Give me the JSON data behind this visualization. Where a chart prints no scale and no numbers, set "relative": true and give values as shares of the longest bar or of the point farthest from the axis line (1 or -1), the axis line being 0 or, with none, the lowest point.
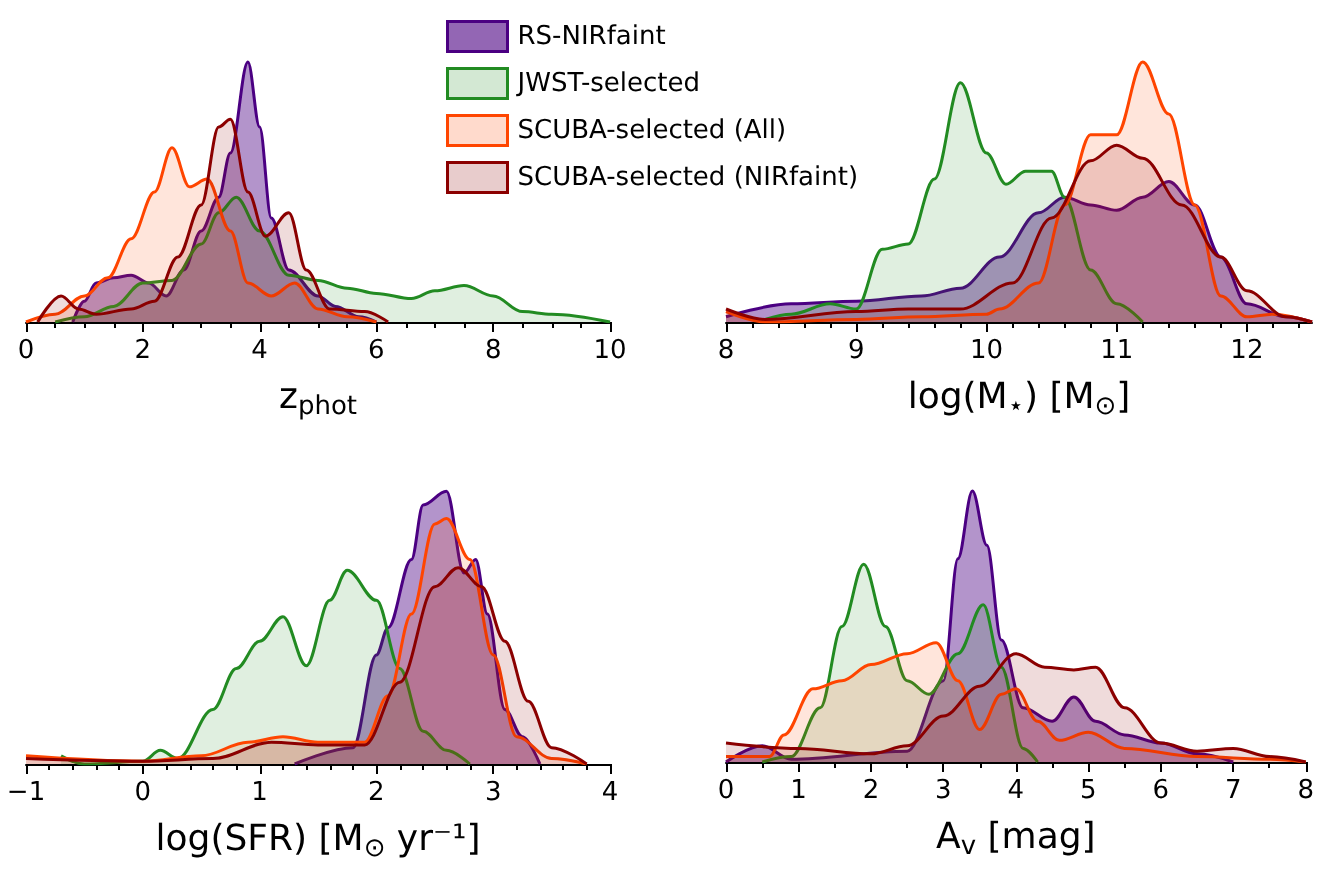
{
  "chart_data": [
    {
      "type": "area",
      "relative": true,
      "xlabel": "z$_{phot}$",
      "xlim": [
        0,
        10
      ],
      "xticks": [
        0,
        2,
        4,
        6,
        8,
        10
      ],
      "legend": "top right",
      "grid": false,
      "marker": "none",
      "series": [
        {
          "name": "RS-NIRfaint",
          "color": "#4b0082",
          "x": [
            0.8,
            1.0,
            1.2,
            1.5,
            1.8,
            2.1,
            2.4,
            2.7,
            3.0,
            3.3,
            3.5,
            3.8,
            4.0,
            4.2,
            4.5,
            5.0,
            5.3,
            5.7,
            6.0
          ],
          "values": [
            0,
            0.08,
            0.15,
            0.17,
            0.18,
            0.15,
            0.1,
            0.2,
            0.35,
            0.48,
            0.65,
            1.0,
            0.75,
            0.4,
            0.2,
            0.1,
            0.06,
            0.02,
            0
          ]
        },
        {
          "name": "JWST-selected",
          "color": "#228b22",
          "x": [
            0.5,
            1.0,
            1.5,
            2.0,
            2.5,
            3.0,
            3.3,
            3.6,
            4.0,
            4.5,
            5.0,
            5.5,
            6.0,
            6.6,
            7.0,
            7.5,
            8.0,
            8.5,
            9.0,
            10.0
          ],
          "values": [
            0,
            0.02,
            0.06,
            0.15,
            0.16,
            0.3,
            0.42,
            0.48,
            0.35,
            0.18,
            0.16,
            0.13,
            0.11,
            0.09,
            0.12,
            0.14,
            0.1,
            0.04,
            0.03,
            0
          ]
        },
        {
          "name": "SCUBA-selected (All)",
          "color": "#ff4500",
          "x": [
            0,
            0.5,
            1.0,
            1.4,
            1.8,
            2.2,
            2.5,
            2.8,
            3.1,
            3.5,
            3.8,
            4.2,
            4.6,
            5.0,
            5.5,
            6.0
          ],
          "values": [
            0,
            0.03,
            0.1,
            0.17,
            0.32,
            0.5,
            0.67,
            0.52,
            0.55,
            0.35,
            0.15,
            0.1,
            0.15,
            0.05,
            0.02,
            0
          ]
        },
        {
          "name": "SCUBA-selected (NIRfaint)",
          "color": "#8b0000",
          "x": [
            0.2,
            0.6,
            0.9,
            1.2,
            1.8,
            2.2,
            2.6,
            3.0,
            3.3,
            3.5,
            3.8,
            4.1,
            4.5,
            4.8,
            5.2,
            5.8,
            6.2
          ],
          "values": [
            0,
            0.1,
            0.05,
            0.03,
            0.05,
            0.08,
            0.25,
            0.45,
            0.75,
            0.78,
            0.5,
            0.33,
            0.42,
            0.2,
            0.05,
            0.04,
            0
          ]
        }
      ]
    },
    {
      "type": "area",
      "relative": true,
      "xlabel": "log(M$_{⋆}$) [M$_{⊙}$]",
      "xlim": [
        8,
        12.5
      ],
      "xticks": [
        8,
        9,
        10,
        11,
        12
      ],
      "grid": false,
      "marker": "none",
      "series": [
        {
          "color": "#4b0082",
          "x": [
            8.0,
            8.5,
            9.0,
            9.5,
            9.8,
            10.1,
            10.4,
            10.6,
            10.8,
            11.0,
            11.2,
            11.4,
            11.6,
            11.8,
            12.0,
            12.3,
            12.5
          ],
          "values": [
            0.02,
            0.07,
            0.08,
            0.1,
            0.13,
            0.25,
            0.42,
            0.48,
            0.45,
            0.43,
            0.48,
            0.54,
            0.45,
            0.25,
            0.07,
            0.02,
            0
          ]
        },
        {
          "color": "#228b22",
          "x": [
            8.3,
            8.5,
            8.8,
            9.0,
            9.2,
            9.4,
            9.6,
            9.8,
            10.0,
            10.15,
            10.3,
            10.5,
            10.6,
            10.8,
            11.0,
            11.2
          ],
          "values": [
            0.01,
            0.03,
            0.07,
            0.05,
            0.28,
            0.3,
            0.55,
            0.92,
            0.65,
            0.53,
            0.58,
            0.58,
            0.48,
            0.2,
            0.07,
            0
          ]
        },
        {
          "color": "#ff4500",
          "x": [
            8.0,
            8.3,
            9.0,
            9.5,
            10.0,
            10.1,
            10.4,
            10.6,
            10.8,
            11.0,
            11.2,
            11.4,
            11.6,
            11.8,
            12.0,
            12.2,
            12.5
          ],
          "values": [
            0.04,
            0,
            0.01,
            0.02,
            0.03,
            0.05,
            0.15,
            0.45,
            0.72,
            0.72,
            1.0,
            0.8,
            0.45,
            0.1,
            0.02,
            0.03,
            0
          ]
        },
        {
          "color": "#8b0000",
          "x": [
            8.0,
            8.3,
            9.0,
            9.4,
            9.8,
            10.2,
            10.5,
            10.8,
            11.0,
            11.2,
            11.5,
            11.8,
            12.0,
            12.3,
            12.5
          ],
          "values": [
            0.05,
            0.01,
            0.04,
            0.05,
            0.05,
            0.15,
            0.4,
            0.62,
            0.68,
            0.63,
            0.45,
            0.25,
            0.12,
            0.02,
            0
          ]
        }
      ]
    },
    {
      "type": "area",
      "relative": true,
      "xlabel": "log(SFR) [M$_{⊙}$ yr⁻¹]",
      "xlim": [
        -1,
        4
      ],
      "xticks": [
        -1,
        0,
        1,
        2,
        3,
        4
      ],
      "grid": false,
      "marker": "none",
      "series": [
        {
          "color": "#4b0082",
          "x": [
            1.3,
            1.8,
            2.0,
            2.1,
            2.3,
            2.4,
            2.6,
            2.75,
            2.85,
            2.95,
            3.1,
            3.25,
            3.4
          ],
          "values": [
            0,
            0.06,
            0.4,
            0.5,
            0.75,
            0.95,
            1.0,
            0.7,
            0.75,
            0.55,
            0.2,
            0.1,
            0
          ]
        },
        {
          "color": "#228b22",
          "x": [
            -0.7,
            -0.5,
            0,
            0.15,
            0.3,
            0.6,
            0.8,
            1.0,
            1.2,
            1.4,
            1.6,
            1.75,
            2.0,
            2.2,
            2.4,
            2.6,
            2.8
          ],
          "values": [
            0.03,
            0,
            0.01,
            0.05,
            0.02,
            0.2,
            0.35,
            0.45,
            0.54,
            0.36,
            0.6,
            0.71,
            0.6,
            0.35,
            0.12,
            0.05,
            0
          ]
        },
        {
          "color": "#ff4500",
          "x": [
            -1,
            0,
            0.5,
            0.9,
            1.2,
            1.5,
            1.9,
            2.1,
            2.3,
            2.5,
            2.6,
            2.8,
            3.0,
            3.2,
            3.5,
            3.8
          ],
          "values": [
            0.03,
            0.01,
            0.03,
            0.08,
            0.1,
            0.08,
            0.08,
            0.25,
            0.55,
            0.88,
            0.9,
            0.75,
            0.4,
            0.1,
            0.02,
            0
          ]
        },
        {
          "color": "#8b0000",
          "x": [
            -1,
            0,
            0.6,
            1.1,
            1.5,
            1.9,
            2.2,
            2.5,
            2.7,
            2.9,
            3.1,
            3.3,
            3.5,
            3.8
          ],
          "values": [
            0.02,
            0.01,
            0.02,
            0.08,
            0.07,
            0.07,
            0.3,
            0.65,
            0.72,
            0.65,
            0.45,
            0.23,
            0.06,
            0
          ]
        }
      ]
    },
    {
      "type": "area",
      "relative": true,
      "xlabel": "A$_{v}$ [mag]",
      "xlim": [
        0,
        8
      ],
      "xticks": [
        0,
        1,
        2,
        3,
        4,
        5,
        6,
        7,
        8
      ],
      "grid": false,
      "marker": "none",
      "series": [
        {
          "color": "#4b0082",
          "x": [
            0,
            0.5,
            0.9,
            2.5,
            3.0,
            3.2,
            3.4,
            3.6,
            3.8,
            4.1,
            4.5,
            4.8,
            5.1,
            5.5,
            6.0,
            6.5,
            7.0
          ],
          "values": [
            0,
            0.06,
            0.01,
            0.04,
            0.3,
            0.75,
            1.0,
            0.8,
            0.45,
            0.2,
            0.15,
            0.24,
            0.15,
            0.1,
            0.07,
            0.03,
            0
          ]
        },
        {
          "color": "#228b22",
          "x": [
            0.5,
            0.9,
            1.3,
            1.6,
            1.9,
            2.2,
            2.5,
            2.8,
            3.2,
            3.55,
            3.8,
            4.1,
            4.3
          ],
          "values": [
            0,
            0.02,
            0.2,
            0.5,
            0.73,
            0.5,
            0.3,
            0.25,
            0.4,
            0.58,
            0.35,
            0.05,
            0
          ]
        },
        {
          "color": "#ff4500",
          "x": [
            0,
            0.6,
            0.8,
            1.2,
            1.6,
            2.0,
            2.5,
            2.9,
            3.2,
            3.5,
            3.8,
            4.0,
            4.3,
            4.6,
            5.0,
            5.5,
            6.5,
            7.5,
            8.0
          ],
          "values": [
            0.02,
            0.02,
            0.1,
            0.27,
            0.3,
            0.36,
            0.4,
            0.44,
            0.3,
            0.12,
            0.25,
            0.27,
            0.15,
            0.08,
            0.11,
            0.05,
            0.02,
            0.01,
            0
          ]
        },
        {
          "color": "#8b0000",
          "x": [
            0,
            1.0,
            2.0,
            2.5,
            3.0,
            3.5,
            4.0,
            4.4,
            4.8,
            5.1,
            5.5,
            6.0,
            6.5,
            7.0,
            7.5,
            8.0
          ],
          "values": [
            0.07,
            0.05,
            0.03,
            0.06,
            0.17,
            0.28,
            0.4,
            0.35,
            0.34,
            0.35,
            0.2,
            0.07,
            0.04,
            0.05,
            0.02,
            0
          ]
        }
      ]
    }
  ]
}
